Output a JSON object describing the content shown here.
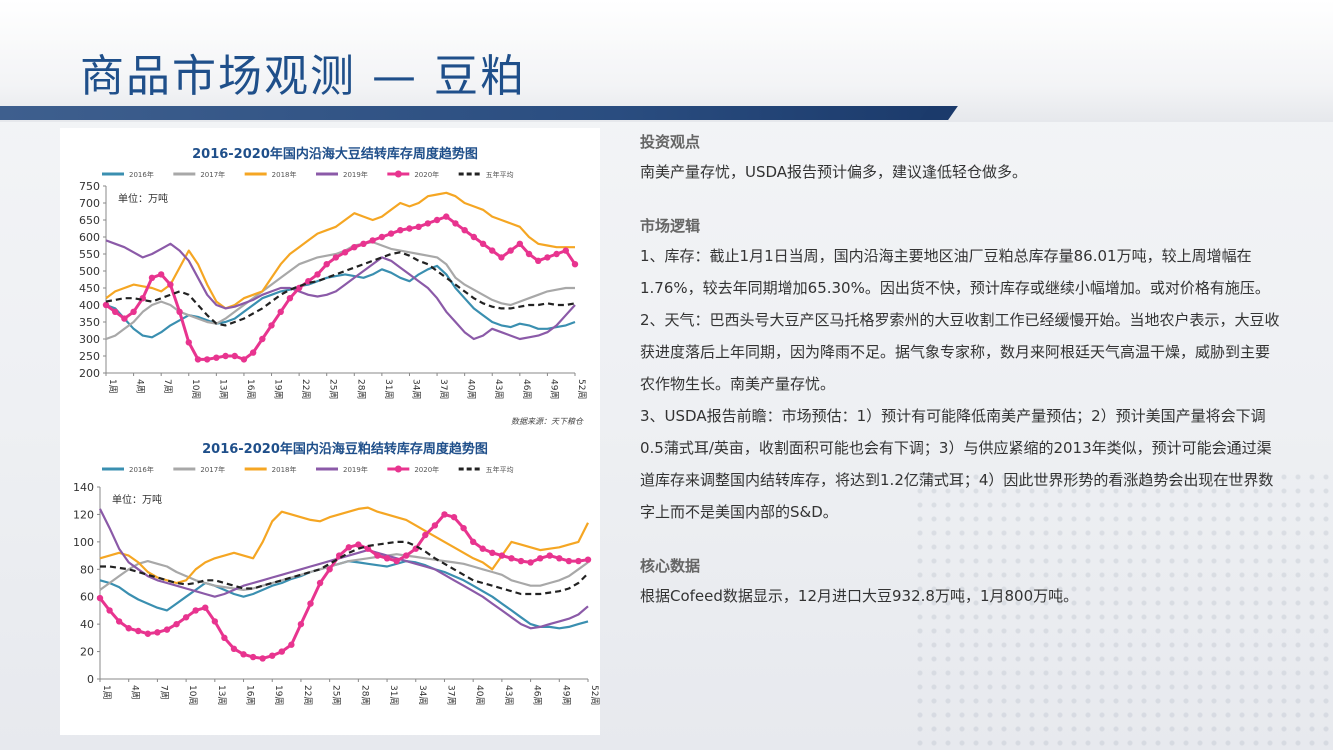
{
  "header": {
    "title": "商品市场观测 — 豆粕"
  },
  "colors": {
    "title": "#1f4f8a",
    "s2016": "#3a8fb0",
    "s2017": "#a8a8a8",
    "s2018": "#f5a623",
    "s2019": "#8b5aa8",
    "s2020": "#e8348f",
    "avg": "#222222"
  },
  "sections": [
    {
      "heading": "投资观点",
      "paragraphs": [
        "南美产量存忧，USDA报告预计偏多，建议逢低轻仓做多。"
      ]
    },
    {
      "heading": "市场逻辑",
      "paragraphs": [
        "1、库存：截止1月1日当周，国内沿海主要地区油厂豆粕总库存量86.01万吨，较上周增幅在1.76%，较去年同期增加65.30%。因出货不快，预计库存或继续小幅增加。或对价格有施压。",
        "2、天气：巴西头号大豆产区马托格罗索州的大豆收割工作已经缓慢开始。当地农户表示，大豆收获进度落后上年同期，因为降雨不足。据气象专家称，数月来阿根廷天气高温干燥，威胁到主要农作物生长。南美产量存忧。",
        "3、USDA报告前瞻：市场预估：1）预计有可能降低南美产量预估；2）预计美国产量将会下调0.5蒲式耳/英亩，收割面积可能也会有下调；3）与供应紧缩的2013年类似，预计可能会通过渠道库存来调整国内结转库存，将达到1.2亿蒲式耳；4）因此世界形势的看涨趋势会出现在世界数字上而不是美国内部的S&D。"
      ]
    },
    {
      "heading": "核心数据",
      "paragraphs": [
        "根据Cofeed数据显示，12月进口大豆932.8万吨，1月800万吨。"
      ]
    }
  ],
  "chart_data": [
    {
      "type": "line",
      "title": "2016-2020年国内沿海大豆结转库存周度趋势图",
      "unit_label": "单位：万吨",
      "source": "数据来源：天下粮仓",
      "ylim": [
        200,
        750
      ],
      "yticks": [
        200,
        250,
        300,
        350,
        400,
        450,
        500,
        550,
        600,
        650,
        700,
        750
      ],
      "x": [
        1,
        2,
        3,
        4,
        5,
        6,
        7,
        8,
        9,
        10,
        11,
        12,
        13,
        14,
        15,
        16,
        17,
        18,
        19,
        20,
        21,
        22,
        23,
        24,
        25,
        26,
        27,
        28,
        29,
        30,
        31,
        32,
        33,
        34,
        35,
        36,
        37,
        38,
        39,
        40,
        41,
        42,
        43,
        44,
        45,
        46,
        47,
        48,
        49,
        50,
        51,
        52
      ],
      "xticks": [
        "1周",
        "4周",
        "7周",
        "10周",
        "13周",
        "16周",
        "19周",
        "22周",
        "25周",
        "28周",
        "31周",
        "34周",
        "37周",
        "40周",
        "43周",
        "46周",
        "49周",
        "52周"
      ],
      "legend_position": "top",
      "series": [
        {
          "name": "2016年",
          "color_key": "s2016",
          "values": [
            400,
            390,
            360,
            330,
            310,
            305,
            320,
            340,
            355,
            370,
            365,
            355,
            345,
            350,
            360,
            380,
            400,
            420,
            430,
            440,
            445,
            455,
            460,
            470,
            480,
            485,
            490,
            485,
            480,
            490,
            505,
            495,
            480,
            470,
            490,
            505,
            515,
            490,
            450,
            420,
            390,
            370,
            350,
            340,
            335,
            345,
            340,
            330,
            330,
            335,
            340,
            350
          ]
        },
        {
          "name": "2017年",
          "color_key": "s2017",
          "values": [
            300,
            310,
            330,
            350,
            380,
            400,
            410,
            400,
            380,
            370,
            360,
            350,
            345,
            360,
            380,
            400,
            420,
            440,
            460,
            480,
            500,
            520,
            530,
            540,
            545,
            550,
            560,
            575,
            580,
            585,
            575,
            565,
            560,
            555,
            550,
            545,
            540,
            520,
            480,
            460,
            445,
            430,
            415,
            405,
            400,
            410,
            420,
            430,
            440,
            445,
            450,
            450
          ]
        },
        {
          "name": "2018年",
          "color_key": "s2018",
          "values": [
            420,
            440,
            450,
            460,
            455,
            450,
            440,
            460,
            510,
            560,
            520,
            460,
            410,
            390,
            400,
            420,
            430,
            440,
            480,
            520,
            550,
            570,
            590,
            610,
            620,
            630,
            650,
            670,
            660,
            650,
            660,
            680,
            700,
            690,
            700,
            720,
            725,
            730,
            720,
            700,
            690,
            680,
            660,
            650,
            640,
            630,
            600,
            580,
            575,
            570,
            570,
            570
          ]
        },
        {
          "name": "2019年",
          "color_key": "s2019",
          "values": [
            590,
            580,
            570,
            555,
            540,
            550,
            565,
            580,
            560,
            530,
            480,
            430,
            400,
            390,
            395,
            405,
            415,
            430,
            440,
            450,
            450,
            440,
            430,
            425,
            430,
            440,
            460,
            480,
            500,
            520,
            540,
            530,
            510,
            490,
            470,
            450,
            420,
            380,
            350,
            320,
            300,
            310,
            330,
            320,
            310,
            300,
            305,
            310,
            320,
            340,
            370,
            400
          ]
        },
        {
          "name": "2020年",
          "color_key": "s2020",
          "values": [
            400,
            380,
            360,
            380,
            420,
            480,
            490,
            460,
            380,
            290,
            240,
            240,
            245,
            250,
            250,
            240,
            260,
            300,
            340,
            380,
            420,
            450,
            470,
            490,
            520,
            540,
            555,
            570,
            580,
            590,
            600,
            610,
            620,
            625,
            630,
            640,
            650,
            660,
            640,
            620,
            600,
            580,
            560,
            540,
            560,
            580,
            550,
            530,
            540,
            550,
            560,
            520
          ]
        },
        {
          "name": "五年平均",
          "color_key": "avg",
          "dashed": true,
          "values": [
            410,
            415,
            420,
            420,
            415,
            410,
            420,
            430,
            440,
            430,
            400,
            370,
            345,
            340,
            350,
            360,
            375,
            390,
            410,
            430,
            445,
            455,
            465,
            470,
            480,
            490,
            500,
            510,
            520,
            530,
            540,
            550,
            555,
            545,
            530,
            520,
            500,
            480,
            460,
            440,
            420,
            405,
            395,
            390,
            390,
            395,
            400,
            400,
            405,
            400,
            400,
            405
          ]
        }
      ]
    },
    {
      "type": "line",
      "title": "2016-2020年国内沿海豆粕结转库存周度趋势图",
      "unit_label": "单位：万吨",
      "ylim": [
        0,
        140
      ],
      "yticks": [
        0,
        20,
        40,
        60,
        80,
        100,
        120,
        140
      ],
      "x": [
        1,
        2,
        3,
        4,
        5,
        6,
        7,
        8,
        9,
        10,
        11,
        12,
        13,
        14,
        15,
        16,
        17,
        18,
        19,
        20,
        21,
        22,
        23,
        24,
        25,
        26,
        27,
        28,
        29,
        30,
        31,
        32,
        33,
        34,
        35,
        36,
        37,
        38,
        39,
        40,
        41,
        42,
        43,
        44,
        45,
        46,
        47,
        48,
        49,
        50,
        51,
        52
      ],
      "xticks": [
        "1周",
        "4周",
        "7周",
        "10周",
        "13周",
        "16周",
        "19周",
        "22周",
        "25周",
        "28周",
        "31周",
        "34周",
        "37周",
        "40周",
        "43周",
        "46周",
        "49周",
        "52周"
      ],
      "legend_position": "top",
      "series": [
        {
          "name": "2016年",
          "color_key": "s2016",
          "values": [
            72,
            70,
            67,
            62,
            58,
            55,
            52,
            50,
            55,
            60,
            65,
            70,
            68,
            65,
            62,
            60,
            62,
            65,
            68,
            70,
            73,
            75,
            78,
            80,
            82,
            84,
            86,
            85,
            84,
            83,
            82,
            84,
            86,
            85,
            83,
            80,
            78,
            75,
            72,
            68,
            64,
            60,
            55,
            50,
            45,
            40,
            38,
            38,
            37,
            38,
            40,
            42
          ]
        },
        {
          "name": "2017年",
          "color_key": "s2017",
          "values": [
            65,
            70,
            75,
            80,
            84,
            86,
            84,
            82,
            78,
            75,
            72,
            70,
            68,
            67,
            66,
            65,
            66,
            68,
            70,
            72,
            74,
            76,
            78,
            80,
            82,
            84,
            86,
            87,
            88,
            89,
            90,
            91,
            90,
            89,
            88,
            87,
            86,
            85,
            84,
            82,
            80,
            78,
            76,
            72,
            70,
            68,
            68,
            70,
            72,
            75,
            80,
            85
          ]
        },
        {
          "name": "2018年",
          "color_key": "s2018",
          "values": [
            88,
            90,
            92,
            90,
            85,
            78,
            74,
            72,
            70,
            72,
            80,
            85,
            88,
            90,
            92,
            90,
            88,
            100,
            115,
            122,
            120,
            118,
            116,
            115,
            118,
            120,
            122,
            124,
            125,
            122,
            120,
            118,
            116,
            112,
            108,
            104,
            100,
            96,
            92,
            88,
            85,
            80,
            90,
            100,
            98,
            96,
            94,
            95,
            96,
            98,
            100,
            114
          ]
        },
        {
          "name": "2019年",
          "color_key": "s2019",
          "values": [
            124,
            110,
            95,
            85,
            80,
            75,
            72,
            70,
            68,
            66,
            64,
            62,
            60,
            62,
            65,
            68,
            70,
            72,
            74,
            76,
            78,
            80,
            82,
            84,
            86,
            88,
            90,
            92,
            94,
            92,
            90,
            88,
            86,
            84,
            82,
            80,
            76,
            72,
            68,
            64,
            60,
            55,
            50,
            45,
            40,
            37,
            38,
            40,
            42,
            44,
            47,
            53
          ]
        },
        {
          "name": "2020年",
          "color_key": "s2020",
          "values": [
            59,
            50,
            42,
            37,
            35,
            33,
            34,
            36,
            40,
            45,
            50,
            52,
            42,
            30,
            22,
            18,
            16,
            15,
            17,
            20,
            25,
            40,
            55,
            70,
            80,
            90,
            96,
            98,
            95,
            90,
            88,
            86,
            90,
            95,
            105,
            112,
            120,
            118,
            110,
            100,
            95,
            92,
            90,
            88,
            86,
            85,
            88,
            90,
            88,
            86,
            86,
            87
          ]
        },
        {
          "name": "五年平均",
          "color_key": "avg",
          "dashed": true,
          "values": [
            82,
            82,
            81,
            80,
            78,
            76,
            74,
            72,
            70,
            69,
            70,
            72,
            72,
            70,
            68,
            66,
            66,
            68,
            70,
            72,
            74,
            76,
            78,
            80,
            84,
            88,
            92,
            95,
            97,
            98,
            99,
            100,
            100,
            97,
            93,
            88,
            84,
            80,
            76,
            72,
            70,
            68,
            66,
            64,
            62,
            62,
            62,
            63,
            64,
            66,
            70,
            77
          ]
        }
      ]
    }
  ]
}
